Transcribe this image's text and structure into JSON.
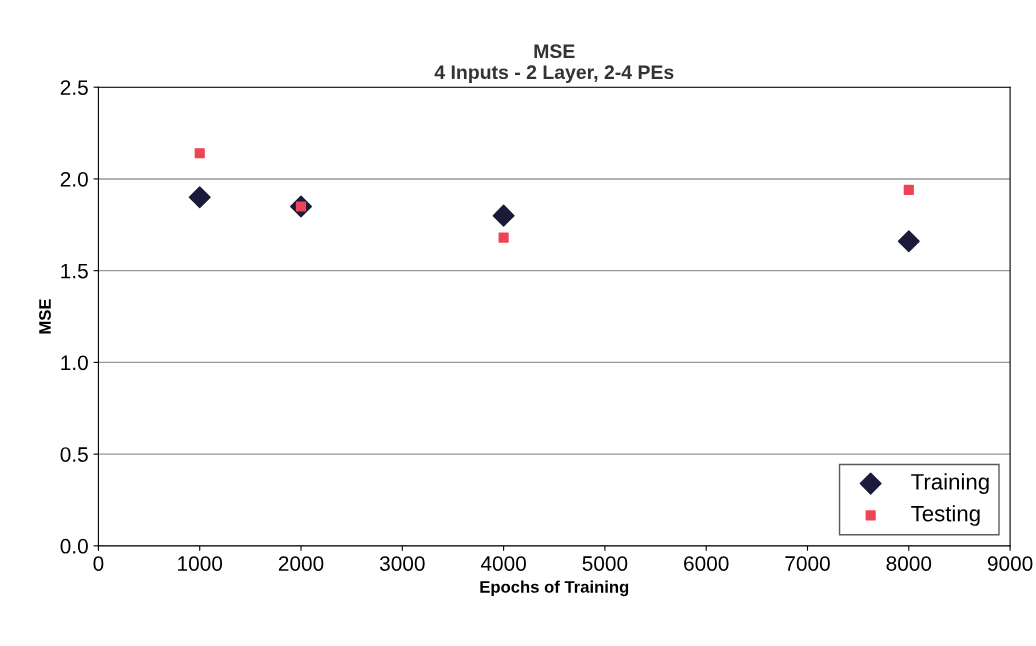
{
  "chart_data": {
    "type": "scatter",
    "title": "MSE\n4 Inputs - 2 Layer, 2-4 PEs",
    "xlabel": "Epochs of Training",
    "ylabel": "MSE",
    "x": [
      1000,
      2000,
      4000,
      8000
    ],
    "series": [
      {
        "name": "Training",
        "color": "#1a1a3a",
        "marker": "diamond",
        "values": [
          1.9,
          1.85,
          1.8,
          1.66
        ]
      },
      {
        "name": "Testing",
        "color": "#ee4455",
        "marker": "square",
        "values": [
          2.14,
          1.85,
          1.68,
          1.94
        ]
      }
    ],
    "xlim": [
      0,
      9000
    ],
    "xticks": [
      0,
      1000,
      2000,
      3000,
      4000,
      5000,
      6000,
      7000,
      8000,
      9000
    ],
    "ylim": [
      0,
      2.5
    ],
    "yticks": [
      {
        "value": 0,
        "label": "0.0"
      },
      {
        "value": 0.5,
        "label": "0.5"
      },
      {
        "value": 1,
        "label": "1.0"
      },
      {
        "value": 1.5,
        "label": "1.5"
      },
      {
        "value": 2,
        "label": "2.0"
      },
      {
        "value": 2.5,
        "label": "2.5"
      }
    ],
    "grid": "y",
    "legend": "bottom right"
  }
}
